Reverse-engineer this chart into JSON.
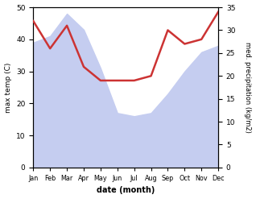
{
  "months": [
    "Jan",
    "Feb",
    "Mar",
    "Apr",
    "May",
    "Jun",
    "Jul",
    "Aug",
    "Sep",
    "Oct",
    "Nov",
    "Dec"
  ],
  "temp_max": [
    39,
    41,
    48,
    43,
    31,
    17,
    16,
    17,
    23,
    30,
    36,
    38
  ],
  "precipitation": [
    32,
    26,
    31,
    22,
    19,
    19,
    19,
    20,
    30,
    27,
    28,
    34
  ],
  "temp_color": "#cc3333",
  "precip_fill_color": "#c5cdf0",
  "temp_ylim": [
    0,
    50
  ],
  "precip_ylim": [
    0,
    35
  ],
  "temp_yticks": [
    0,
    10,
    20,
    30,
    40,
    50
  ],
  "precip_yticks": [
    0,
    5,
    10,
    15,
    20,
    25,
    30,
    35
  ],
  "ylabel_left": "max temp (C)",
  "ylabel_right": "med. precipitation (kg/m2)",
  "xlabel": "date (month)",
  "background_color": "#ffffff"
}
